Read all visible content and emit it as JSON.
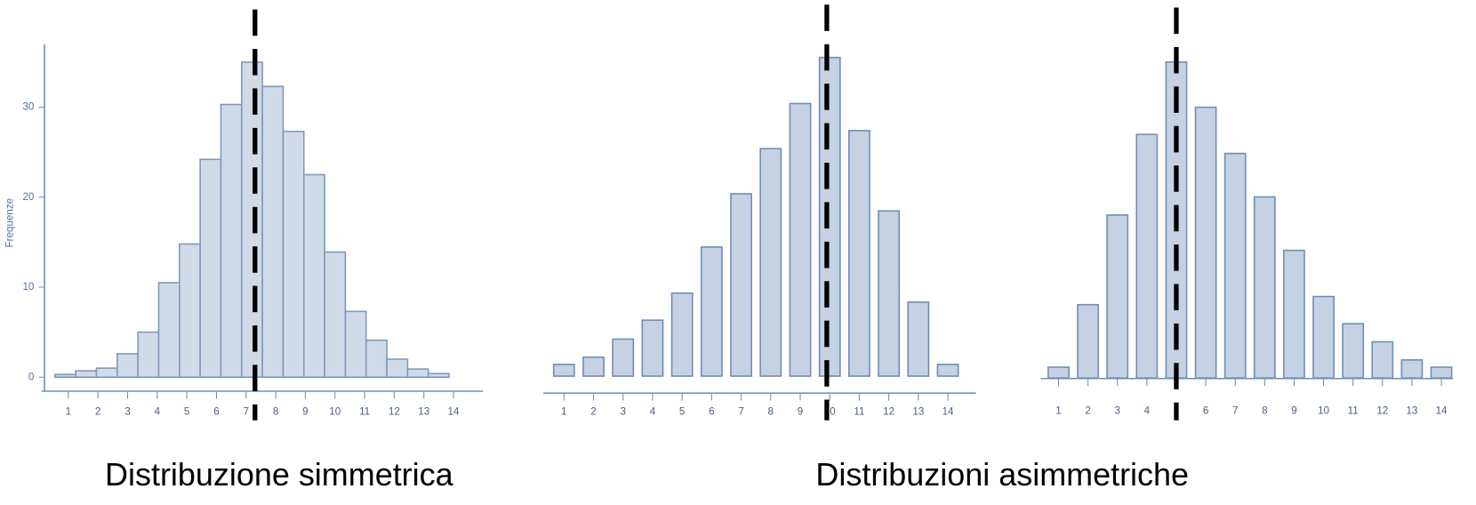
{
  "chart_data": [
    {
      "type": "histogram",
      "ylabel": "Frequenze",
      "bins": [
        0.55,
        1.25,
        1.95,
        2.65,
        3.35,
        4.05,
        4.75,
        5.45,
        6.15,
        6.85,
        7.55,
        8.25,
        8.95,
        9.65,
        10.35,
        11.05,
        11.75,
        12.45,
        13.15,
        13.85
      ],
      "counts": [
        0.3,
        0.7,
        1.0,
        2.6,
        5.0,
        10.5,
        14.8,
        24.2,
        30.3,
        35,
        32.3,
        27.3,
        22.5,
        13.9,
        7.3,
        4.1,
        2.0,
        0.9,
        0.4
      ],
      "color": "#d0dbe9",
      "edge_color": "#7f98bd",
      "xlim": [
        0.1,
        15
      ],
      "xticks": [
        1,
        2,
        3,
        4,
        5,
        6,
        7,
        8,
        9,
        10,
        11,
        12,
        13,
        14
      ],
      "ylim": [
        -1.5,
        37
      ],
      "yticks": [
        0,
        10,
        20,
        30
      ],
      "reference_line": 7.3
    },
    {
      "type": "bar",
      "x": [
        1,
        2,
        3,
        4,
        5,
        6,
        7,
        8,
        9,
        10,
        11,
        12,
        13,
        14
      ],
      "values": [
        1.3,
        2.1,
        4.1,
        6.2,
        9.2,
        14.3,
        20.2,
        25.2,
        30.2,
        35.3,
        27.2,
        18.3,
        8.2,
        1.3
      ],
      "color": "#c5d2e3",
      "edge_color": "#6f8db5",
      "xlim": [
        0.3,
        14.95
      ],
      "xticks": [
        1,
        2,
        3,
        4,
        5,
        6,
        7,
        8,
        9,
        10,
        11,
        12,
        13,
        14
      ],
      "ylim": [
        -1.9,
        37
      ],
      "reference_line": 9.9
    },
    {
      "type": "bar",
      "x": [
        1,
        2,
        3,
        4,
        5,
        6,
        7,
        8,
        9,
        10,
        11,
        12,
        13,
        14
      ],
      "values": [
        1.2,
        8.1,
        18,
        26.9,
        34.9,
        29.9,
        24.8,
        20,
        14.1,
        9,
        6,
        4,
        2,
        1.2
      ],
      "color": "#c5d2e3",
      "edge_color": "#6f8db5",
      "xlim": [
        0.4,
        14.4
      ],
      "xticks": [
        1,
        2,
        3,
        4,
        5,
        6,
        7,
        8,
        9,
        10,
        11,
        12,
        13,
        14
      ],
      "ylim": [
        0,
        37
      ],
      "reference_line": 5
    }
  ],
  "captions": [
    "Distribuzione simmetrica",
    "Distribuzioni asimmetriche"
  ]
}
